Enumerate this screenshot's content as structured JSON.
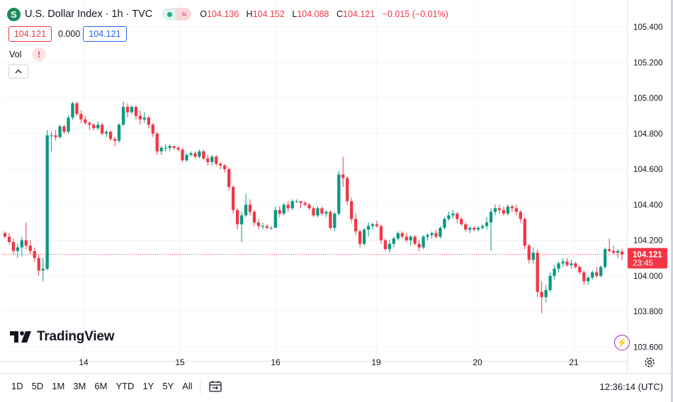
{
  "header": {
    "symbol_icon": "S",
    "title": "U.S. Dollar Index · 1h · TVC",
    "ohlc": {
      "o_label": "O",
      "o": "104.136",
      "h_label": "H",
      "h": "104.152",
      "l_label": "L",
      "l": "104.088",
      "c_label": "C",
      "c": "104.121",
      "change": "−0.015 (−0.01%)"
    },
    "market_status_icons": [
      "market-open-dot-icon",
      "wave-icon"
    ]
  },
  "quote": {
    "bid": "104.121",
    "spread": "0.000",
    "ask": "104.121"
  },
  "indicator": {
    "vol_label": "Vol",
    "warning_icon": "!",
    "collapse_icon": "chevron-up-icon"
  },
  "price_axis": {
    "ticks": [
      "105.400",
      "105.200",
      "105.000",
      "104.800",
      "104.600",
      "104.400",
      "104.200",
      "104.000",
      "103.800",
      "103.600"
    ],
    "current_price": "104.121",
    "countdown": "23:45"
  },
  "time_axis": {
    "ticks": [
      "14",
      "15",
      "16",
      "19",
      "20",
      "21"
    ]
  },
  "logo_text": "TradingView",
  "ranges": [
    "1D",
    "5D",
    "1M",
    "3M",
    "6M",
    "YTD",
    "1Y",
    "5Y",
    "All"
  ],
  "clock": "12:36:14 (UTC)",
  "colors": {
    "up": "#089981",
    "down": "#f23645",
    "grid": "#f0f3fa",
    "text": "#131722"
  },
  "chart_data": {
    "type": "candlestick",
    "y_ticks": [
      105.4,
      105.2,
      105.0,
      104.8,
      104.6,
      104.4,
      104.2,
      104.0,
      103.8,
      103.6
    ],
    "ylim": [
      103.575,
      105.51
    ],
    "x_ticks": [
      "14",
      "15",
      "16",
      "19",
      "20",
      "21"
    ],
    "current_price": 104.121,
    "candles": [
      [
        104.24,
        104.25,
        104.21,
        104.22
      ],
      [
        104.22,
        104.24,
        104.18,
        104.19
      ],
      [
        104.19,
        104.21,
        104.12,
        104.14
      ],
      [
        104.14,
        104.18,
        104.1,
        104.16
      ],
      [
        104.16,
        104.22,
        104.11,
        104.2
      ],
      [
        104.2,
        104.3,
        104.15,
        104.17
      ],
      [
        104.17,
        104.2,
        104.12,
        104.14
      ],
      [
        104.14,
        104.16,
        104.08,
        104.1
      ],
      [
        104.1,
        104.12,
        104.0,
        104.03
      ],
      [
        104.03,
        104.1,
        103.97,
        104.04
      ],
      [
        104.04,
        104.82,
        104.03,
        104.79
      ],
      [
        104.79,
        104.81,
        104.7,
        104.79
      ],
      [
        104.79,
        104.82,
        104.76,
        104.78
      ],
      [
        104.78,
        104.85,
        104.77,
        104.84
      ],
      [
        104.84,
        104.85,
        104.8,
        104.81
      ],
      [
        104.81,
        104.9,
        104.8,
        104.89
      ],
      [
        104.89,
        104.98,
        104.88,
        104.97
      ],
      [
        104.97,
        104.98,
        104.9,
        104.91
      ],
      [
        104.91,
        104.93,
        104.86,
        104.88
      ],
      [
        104.88,
        104.9,
        104.85,
        104.86
      ],
      [
        104.86,
        104.87,
        104.82,
        104.85
      ],
      [
        104.85,
        104.86,
        104.82,
        104.83
      ],
      [
        104.83,
        104.87,
        104.82,
        104.85
      ],
      [
        104.85,
        104.86,
        104.79,
        104.8
      ],
      [
        104.8,
        104.82,
        104.78,
        104.81
      ],
      [
        104.81,
        104.82,
        104.76,
        104.77
      ],
      [
        104.77,
        104.78,
        104.73,
        104.76
      ],
      [
        104.76,
        104.86,
        104.75,
        104.85
      ],
      [
        104.85,
        104.98,
        104.84,
        104.95
      ],
      [
        104.95,
        104.97,
        104.89,
        104.92
      ],
      [
        104.92,
        104.96,
        104.91,
        104.95
      ],
      [
        104.95,
        104.96,
        104.88,
        104.9
      ],
      [
        104.9,
        104.93,
        104.85,
        104.88
      ],
      [
        104.88,
        104.92,
        104.86,
        104.89
      ],
      [
        104.89,
        104.9,
        104.83,
        104.85
      ],
      [
        104.85,
        104.86,
        104.78,
        104.8
      ],
      [
        104.8,
        104.81,
        104.68,
        104.7
      ],
      [
        104.7,
        104.73,
        104.68,
        104.72
      ],
      [
        104.72,
        104.74,
        104.7,
        104.72
      ],
      [
        104.72,
        104.74,
        104.7,
        104.73
      ],
      [
        104.73,
        104.73,
        104.71,
        104.72
      ],
      [
        104.72,
        104.73,
        104.7,
        104.71
      ],
      [
        104.71,
        104.72,
        104.64,
        104.65
      ],
      [
        104.65,
        104.69,
        104.64,
        104.68
      ],
      [
        104.68,
        104.7,
        104.67,
        104.69
      ],
      [
        104.69,
        104.7,
        104.66,
        104.67
      ],
      [
        104.67,
        104.71,
        104.66,
        104.7
      ],
      [
        104.7,
        104.71,
        104.65,
        104.66
      ],
      [
        104.66,
        104.68,
        104.62,
        104.64
      ],
      [
        104.64,
        104.68,
        104.62,
        104.67
      ],
      [
        104.67,
        104.68,
        104.62,
        104.63
      ],
      [
        104.63,
        104.64,
        104.6,
        104.62
      ],
      [
        104.62,
        104.63,
        104.58,
        104.6
      ],
      [
        104.6,
        104.61,
        104.48,
        104.5
      ],
      [
        104.5,
        104.51,
        104.35,
        104.37
      ],
      [
        104.37,
        104.38,
        104.26,
        104.29
      ],
      [
        104.29,
        104.36,
        104.19,
        104.34
      ],
      [
        104.34,
        104.46,
        104.33,
        104.4
      ],
      [
        104.4,
        104.43,
        104.34,
        104.36
      ],
      [
        104.36,
        104.37,
        104.28,
        104.3
      ],
      [
        104.3,
        104.32,
        104.26,
        104.28
      ],
      [
        104.28,
        104.3,
        104.26,
        104.28
      ],
      [
        104.28,
        104.29,
        104.26,
        104.27
      ],
      [
        104.27,
        104.28,
        104.26,
        104.27
      ],
      [
        104.27,
        104.39,
        104.27,
        104.37
      ],
      [
        104.37,
        104.39,
        104.33,
        104.35
      ],
      [
        104.35,
        104.41,
        104.34,
        104.4
      ],
      [
        104.4,
        104.42,
        104.36,
        104.38
      ],
      [
        104.38,
        104.43,
        104.37,
        104.42
      ],
      [
        104.42,
        104.43,
        104.41,
        104.42
      ],
      [
        104.42,
        104.42,
        104.38,
        104.41
      ],
      [
        104.41,
        104.42,
        104.39,
        104.4
      ],
      [
        104.4,
        104.41,
        104.37,
        104.38
      ],
      [
        104.38,
        104.39,
        104.33,
        104.34
      ],
      [
        104.34,
        104.39,
        104.33,
        104.38
      ],
      [
        104.38,
        104.39,
        104.34,
        104.35
      ],
      [
        104.35,
        104.37,
        104.33,
        104.36
      ],
      [
        104.36,
        104.37,
        104.26,
        104.27
      ],
      [
        104.27,
        104.36,
        104.25,
        104.35
      ],
      [
        104.35,
        104.59,
        104.34,
        104.57
      ],
      [
        104.57,
        104.67,
        104.5,
        104.55
      ],
      [
        104.55,
        104.56,
        104.4,
        104.42
      ],
      [
        104.42,
        104.44,
        104.3,
        104.32
      ],
      [
        104.32,
        104.35,
        104.23,
        104.25
      ],
      [
        104.25,
        104.26,
        104.16,
        104.18
      ],
      [
        104.18,
        104.27,
        104.17,
        104.26
      ],
      [
        104.26,
        104.3,
        104.22,
        104.28
      ],
      [
        104.28,
        104.3,
        104.26,
        104.29
      ],
      [
        104.29,
        104.31,
        104.27,
        104.28
      ],
      [
        104.28,
        104.29,
        104.18,
        104.2
      ],
      [
        104.2,
        104.21,
        104.14,
        104.15
      ],
      [
        104.15,
        104.2,
        104.13,
        104.18
      ],
      [
        104.18,
        104.22,
        104.16,
        104.21
      ],
      [
        104.21,
        104.25,
        104.2,
        104.24
      ],
      [
        104.24,
        104.25,
        104.21,
        104.22
      ],
      [
        104.22,
        104.24,
        104.19,
        104.2
      ],
      [
        104.2,
        104.23,
        104.17,
        104.22
      ],
      [
        104.22,
        104.23,
        104.17,
        104.18
      ],
      [
        104.18,
        104.2,
        104.14,
        104.16
      ],
      [
        104.16,
        104.23,
        104.15,
        104.22
      ],
      [
        104.22,
        104.24,
        104.2,
        104.23
      ],
      [
        104.23,
        104.25,
        104.21,
        104.24
      ],
      [
        104.24,
        104.26,
        104.21,
        104.22
      ],
      [
        104.22,
        104.28,
        104.21,
        104.27
      ],
      [
        104.27,
        104.33,
        104.26,
        104.32
      ],
      [
        104.32,
        104.36,
        104.31,
        104.34
      ],
      [
        104.34,
        104.37,
        104.32,
        104.35
      ],
      [
        104.35,
        104.36,
        104.3,
        104.32
      ],
      [
        104.32,
        104.33,
        104.28,
        104.29
      ],
      [
        104.29,
        104.3,
        104.25,
        104.26
      ],
      [
        104.26,
        104.28,
        104.24,
        104.27
      ],
      [
        104.27,
        104.28,
        104.25,
        104.26
      ],
      [
        104.26,
        104.28,
        104.25,
        104.27
      ],
      [
        104.27,
        104.29,
        104.26,
        104.28
      ],
      [
        104.28,
        104.33,
        104.26,
        104.3
      ],
      [
        104.3,
        104.38,
        104.14,
        104.36
      ],
      [
        104.36,
        104.4,
        104.34,
        104.38
      ],
      [
        104.38,
        104.4,
        104.35,
        104.37
      ],
      [
        104.37,
        104.39,
        104.34,
        104.35
      ],
      [
        104.35,
        104.4,
        104.34,
        104.39
      ],
      [
        104.39,
        104.4,
        104.36,
        104.38
      ],
      [
        104.38,
        104.4,
        104.34,
        104.36
      ],
      [
        104.36,
        104.37,
        104.3,
        104.32
      ],
      [
        104.32,
        104.33,
        104.15,
        104.17
      ],
      [
        104.17,
        104.18,
        104.07,
        104.09
      ],
      [
        104.09,
        104.16,
        104.07,
        104.13
      ],
      [
        104.13,
        104.15,
        103.88,
        103.91
      ],
      [
        103.91,
        103.97,
        103.79,
        103.88
      ],
      [
        103.88,
        103.95,
        103.85,
        103.92
      ],
      [
        103.92,
        104.02,
        103.91,
        104.0
      ],
      [
        104.0,
        104.06,
        103.98,
        104.04
      ],
      [
        104.04,
        104.08,
        104.02,
        104.07
      ],
      [
        104.07,
        104.1,
        104.05,
        104.08
      ],
      [
        104.08,
        104.1,
        104.05,
        104.06
      ],
      [
        104.06,
        104.09,
        104.04,
        104.07
      ],
      [
        104.07,
        104.08,
        104.04,
        104.05
      ],
      [
        104.05,
        104.06,
        104.01,
        104.02
      ],
      [
        104.02,
        104.03,
        103.95,
        103.97
      ],
      [
        103.97,
        104.0,
        103.95,
        103.99
      ],
      [
        103.99,
        104.03,
        103.98,
        104.02
      ],
      [
        104.02,
        104.05,
        103.99,
        104.0
      ],
      [
        104.0,
        104.06,
        103.99,
        104.05
      ],
      [
        104.05,
        104.16,
        104.04,
        104.15
      ],
      [
        104.15,
        104.21,
        104.13,
        104.14
      ],
      [
        104.14,
        104.17,
        104.12,
        104.13
      ],
      [
        104.13,
        104.15,
        104.1,
        104.14
      ],
      [
        104.136,
        104.152,
        104.088,
        104.121
      ]
    ]
  }
}
